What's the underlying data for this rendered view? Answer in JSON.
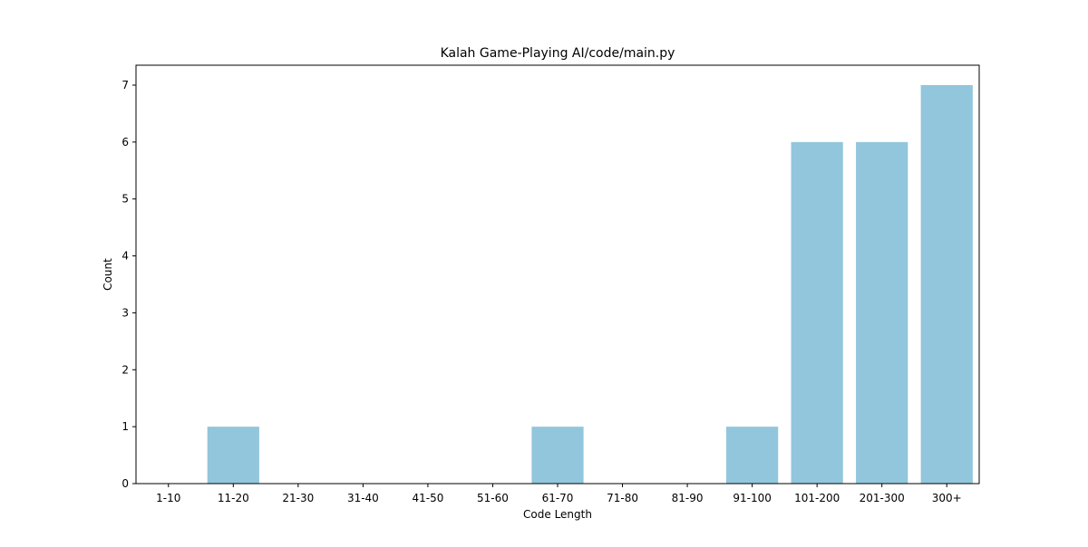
{
  "chart_data": {
    "type": "bar",
    "title": "Kalah Game-Playing AI/code/main.py",
    "xlabel": "Code Length",
    "ylabel": "Count",
    "categories": [
      "1-10",
      "11-20",
      "21-30",
      "31-40",
      "41-50",
      "51-60",
      "61-70",
      "71-80",
      "81-90",
      "91-100",
      "101-200",
      "201-300",
      "300+"
    ],
    "values": [
      0,
      1,
      0,
      0,
      0,
      0,
      1,
      0,
      0,
      1,
      6,
      6,
      7
    ],
    "ylim": [
      0,
      7.35
    ],
    "yticks": [
      0,
      1,
      2,
      3,
      4,
      5,
      6,
      7
    ],
    "grid": false,
    "bar_color": "#92c6dc"
  }
}
